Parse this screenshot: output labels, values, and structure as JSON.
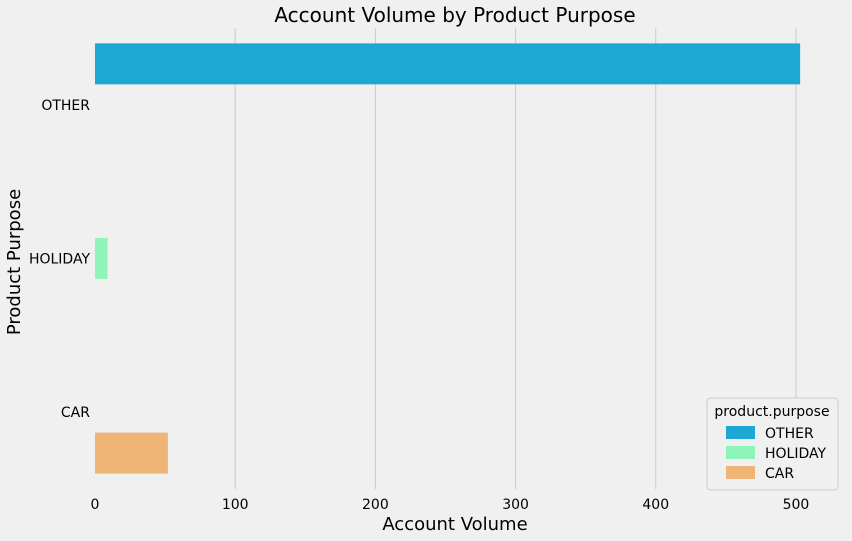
{
  "chart_data": {
    "type": "bar",
    "orientation": "horizontal",
    "title": "Account Volume by Product Purpose",
    "xlabel": "Account Volume",
    "ylabel": "Product Purpose",
    "xlim": [
      0,
      530
    ],
    "xticks": [
      0,
      100,
      200,
      300,
      400,
      500
    ],
    "grid": "vertical",
    "categories": [
      "OTHER",
      "HOLIDAY",
      "CAR"
    ],
    "series": [
      {
        "name": "OTHER",
        "category": "OTHER",
        "value": 503,
        "color": "#1ca8d2"
      },
      {
        "name": "HOLIDAY",
        "category": "HOLIDAY",
        "value": 9,
        "color": "#8ef4b8"
      },
      {
        "name": "CAR",
        "category": "CAR",
        "value": 52,
        "color": "#efb577"
      }
    ],
    "legend": {
      "title": "product.purpose",
      "position": "bottom-right",
      "entries": [
        "OTHER",
        "HOLIDAY",
        "CAR"
      ]
    }
  }
}
